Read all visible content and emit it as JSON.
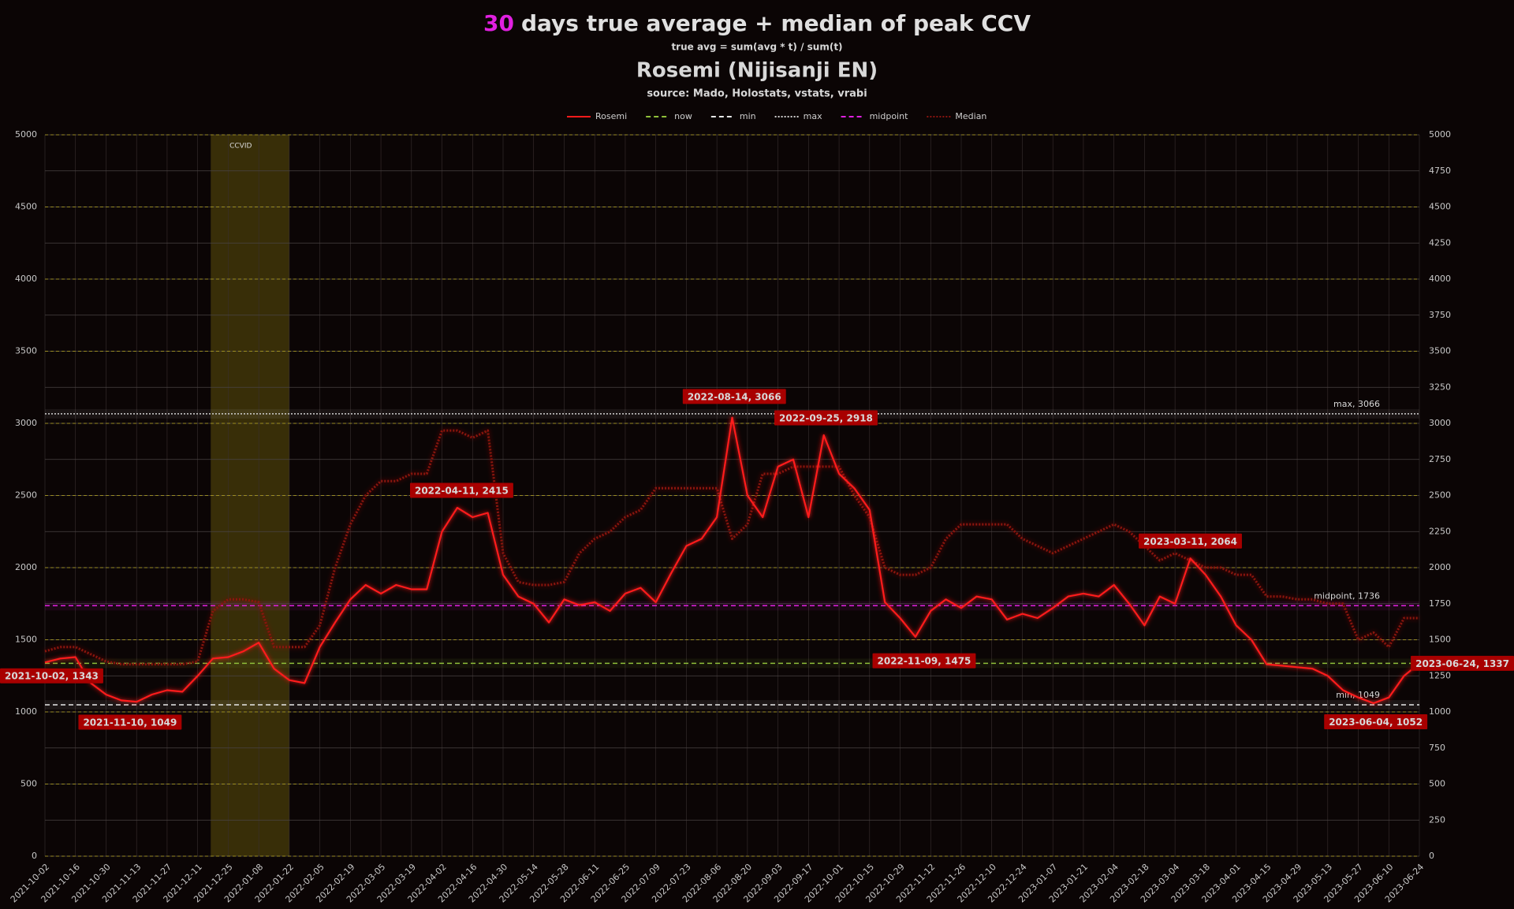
{
  "chart_data": {
    "type": "line",
    "title_prefix": "30",
    "title": "days true average + median of peak CCV",
    "subtitle": "true avg = sum(avg * t) / sum(t)",
    "channel": "Rosemi (Nijisanji EN)",
    "source": "source: Mado, Holostats, vstats, vrabi",
    "x": [
      "2021-10-02",
      "2021-10-09",
      "2021-10-16",
      "2021-10-23",
      "2021-10-30",
      "2021-11-06",
      "2021-11-13",
      "2021-11-20",
      "2021-11-27",
      "2021-12-04",
      "2021-12-11",
      "2021-12-18",
      "2021-12-25",
      "2022-01-01",
      "2022-01-08",
      "2022-01-15",
      "2022-01-22",
      "2022-01-29",
      "2022-02-05",
      "2022-02-12",
      "2022-02-19",
      "2022-02-26",
      "2022-03-05",
      "2022-03-12",
      "2022-03-19",
      "2022-03-26",
      "2022-04-02",
      "2022-04-09",
      "2022-04-16",
      "2022-04-23",
      "2022-04-30",
      "2022-05-07",
      "2022-05-14",
      "2022-05-21",
      "2022-05-28",
      "2022-06-04",
      "2022-06-11",
      "2022-06-18",
      "2022-06-25",
      "2022-07-02",
      "2022-07-09",
      "2022-07-16",
      "2022-07-23",
      "2022-07-30",
      "2022-08-06",
      "2022-08-13",
      "2022-08-20",
      "2022-08-27",
      "2022-09-03",
      "2022-09-10",
      "2022-09-17",
      "2022-09-24",
      "2022-10-01",
      "2022-10-08",
      "2022-10-15",
      "2022-10-22",
      "2022-10-29",
      "2022-11-05",
      "2022-11-12",
      "2022-11-19",
      "2022-11-26",
      "2022-12-03",
      "2022-12-10",
      "2022-12-17",
      "2022-12-24",
      "2022-12-31",
      "2023-01-07",
      "2023-01-14",
      "2023-01-21",
      "2023-01-28",
      "2023-02-04",
      "2023-02-11",
      "2023-02-18",
      "2023-02-25",
      "2023-03-04",
      "2023-03-11",
      "2023-03-18",
      "2023-03-25",
      "2023-04-01",
      "2023-04-08",
      "2023-04-15",
      "2023-04-22",
      "2023-04-29",
      "2023-05-06",
      "2023-05-13",
      "2023-05-20",
      "2023-05-27",
      "2023-06-03",
      "2023-06-10",
      "2023-06-17",
      "2023-06-24"
    ],
    "series": [
      {
        "name": "Rosemi",
        "color": "#ff1a1a",
        "style": "solid",
        "values": [
          1343,
          1370,
          1380,
          1200,
          1120,
          1080,
          1070,
          1120,
          1150,
          1140,
          1250,
          1370,
          1380,
          1420,
          1480,
          1300,
          1220,
          1200,
          1450,
          1620,
          1780,
          1880,
          1820,
          1880,
          1850,
          1850,
          2250,
          2415,
          2350,
          2380,
          1950,
          1800,
          1750,
          1620,
          1780,
          1740,
          1760,
          1700,
          1820,
          1860,
          1760,
          1960,
          2150,
          2200,
          2350,
          3040,
          2500,
          2350,
          2700,
          2750,
          2350,
          2918,
          2650,
          2550,
          2400,
          1760,
          1650,
          1520,
          1700,
          1780,
          1720,
          1800,
          1780,
          1640,
          1680,
          1650,
          1720,
          1800,
          1820,
          1800,
          1880,
          1750,
          1600,
          1800,
          1750,
          2064,
          1950,
          1800,
          1600,
          1500,
          1330,
          1320,
          1310,
          1300,
          1250,
          1150,
          1100,
          1060,
          1100,
          1250,
          1337
        ]
      },
      {
        "name": "Median",
        "color": "#8a1410",
        "style": "dotted",
        "values": [
          1420,
          1450,
          1450,
          1400,
          1350,
          1330,
          1330,
          1330,
          1330,
          1330,
          1350,
          1700,
          1780,
          1780,
          1760,
          1450,
          1450,
          1450,
          1600,
          2000,
          2300,
          2500,
          2600,
          2600,
          2650,
          2650,
          2950,
          2950,
          2900,
          2950,
          2100,
          1900,
          1880,
          1880,
          1900,
          2100,
          2200,
          2250,
          2350,
          2400,
          2550,
          2550,
          2550,
          2550,
          2550,
          2200,
          2300,
          2650,
          2650,
          2700,
          2700,
          2700,
          2700,
          2500,
          2350,
          2000,
          1950,
          1950,
          2000,
          2200,
          2300,
          2300,
          2300,
          2300,
          2200,
          2150,
          2100,
          2150,
          2200,
          2250,
          2300,
          2250,
          2150,
          2050,
          2100,
          2050,
          2000,
          2000,
          1950,
          1950,
          1800,
          1800,
          1780,
          1780,
          1750,
          1750,
          1500,
          1550,
          1450,
          1650,
          1650
        ]
      }
    ],
    "ref_lines": [
      {
        "name": "now",
        "value": 1337,
        "color": "#8fbf3a",
        "dash": "dashed"
      },
      {
        "name": "min",
        "value": 1049,
        "color": "#e8e8e8",
        "dash": "dashed",
        "label": "min, 1049"
      },
      {
        "name": "max",
        "value": 3066,
        "color": "#d0d0d0",
        "dash": "dotted",
        "label": "max, 3066"
      },
      {
        "name": "midpoint",
        "value": 1736,
        "color": "#e020e0",
        "dash": "dashed",
        "label": "midpoint, 1736"
      }
    ],
    "annotations": [
      {
        "text": "2021-10-02, 1343",
        "x": "2021-10-02",
        "y": 1343,
        "anchor": "left"
      },
      {
        "text": "2021-11-10, 1049",
        "x": "2021-11-10",
        "y": 1049,
        "anchor": "below"
      },
      {
        "text": "2022-04-11, 2415",
        "x": "2022-04-11",
        "y": 2415,
        "anchor": "above"
      },
      {
        "text": "2022-08-14, 3066",
        "x": "2022-08-14",
        "y": 3066,
        "anchor": "above"
      },
      {
        "text": "2022-09-25, 2918",
        "x": "2022-09-25",
        "y": 2918,
        "anchor": "above"
      },
      {
        "text": "2022-11-09, 1475",
        "x": "2022-11-09",
        "y": 1475,
        "anchor": "below"
      },
      {
        "text": "2023-03-11, 2064",
        "x": "2023-03-11",
        "y": 2064,
        "anchor": "above"
      },
      {
        "text": "2023-06-04, 1052",
        "x": "2023-06-04",
        "y": 1052,
        "anchor": "below"
      },
      {
        "text": "2023-06-24, 1337",
        "x": "2023-06-24",
        "y": 1337,
        "anchor": "right"
      }
    ],
    "ranges": [
      {
        "label": "CCVID",
        "start": "2021-12-17",
        "end": "2022-01-22"
      }
    ],
    "xlim": [
      "2021-10-02",
      "2023-06-24"
    ],
    "xticks": [
      "2021-10-02",
      "2021-10-16",
      "2021-10-30",
      "2021-11-13",
      "2021-11-27",
      "2021-12-11",
      "2021-12-25",
      "2022-01-08",
      "2022-01-22",
      "2022-02-05",
      "2022-02-19",
      "2022-03-05",
      "2022-03-19",
      "2022-04-02",
      "2022-04-16",
      "2022-04-30",
      "2022-05-14",
      "2022-05-28",
      "2022-06-11",
      "2022-06-25",
      "2022-07-09",
      "2022-07-23",
      "2022-08-06",
      "2022-08-20",
      "2022-09-03",
      "2022-09-17",
      "2022-10-01",
      "2022-10-15",
      "2022-10-29",
      "2022-11-12",
      "2022-11-26",
      "2022-12-10",
      "2022-12-24",
      "2023-01-07",
      "2023-01-21",
      "2023-02-04",
      "2023-02-18",
      "2023-03-04",
      "2023-03-18",
      "2023-04-01",
      "2023-04-15",
      "2023-04-29",
      "2023-05-13",
      "2023-05-27",
      "2023-06-10",
      "2023-06-24"
    ],
    "ylim": [
      0,
      5000
    ],
    "yticks": [
      0,
      500,
      1000,
      1500,
      2000,
      2500,
      3000,
      3500,
      4000,
      4500,
      5000
    ],
    "y2lim": [
      0,
      5000
    ],
    "y2ticks": [
      0,
      250,
      500,
      750,
      1000,
      1250,
      1500,
      1750,
      2000,
      2250,
      2500,
      2750,
      3000,
      3250,
      3500,
      3750,
      4000,
      4250,
      4500,
      4750,
      5000
    ],
    "grid": true,
    "legend": "top"
  }
}
